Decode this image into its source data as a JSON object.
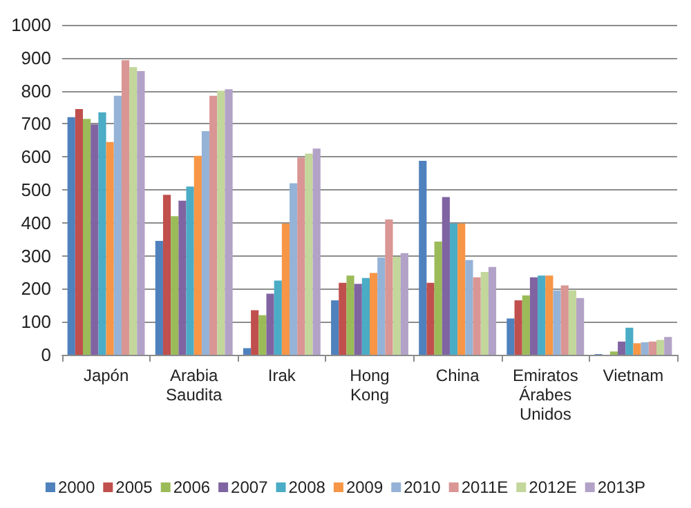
{
  "chart_data": {
    "type": "bar",
    "categories": [
      "Japón",
      "Arabia\nSaudita",
      "Irak",
      "Hong\nKong",
      "China",
      "Emiratos\nÁrabes\nUnidos",
      "Vietnam"
    ],
    "series": [
      {
        "name": "2000",
        "color": "#4f81bd",
        "values": [
          720,
          345,
          20,
          165,
          588,
          110,
          2
        ]
      },
      {
        "name": "2005",
        "color": "#c0504d",
        "values": [
          745,
          485,
          135,
          218,
          218,
          165,
          0
        ]
      },
      {
        "name": "2006",
        "color": "#9bbb59",
        "values": [
          715,
          420,
          120,
          240,
          343,
          180,
          10
        ]
      },
      {
        "name": "2007",
        "color": "#8064a2",
        "values": [
          698,
          467,
          185,
          215,
          478,
          235,
          40
        ]
      },
      {
        "name": "2008",
        "color": "#4bacc6",
        "values": [
          735,
          510,
          225,
          233,
          398,
          240,
          82
        ]
      },
      {
        "name": "2009",
        "color": "#f79646",
        "values": [
          645,
          603,
          398,
          248,
          398,
          240,
          35
        ]
      },
      {
        "name": "2010",
        "color": "#95b3d7",
        "values": [
          785,
          678,
          520,
          295,
          287,
          195,
          38
        ]
      },
      {
        "name": "2011E",
        "color": "#d99694",
        "values": [
          893,
          785,
          598,
          410,
          235,
          210,
          40
        ]
      },
      {
        "name": "2012E",
        "color": "#c3d69b",
        "values": [
          872,
          800,
          610,
          297,
          251,
          195,
          45
        ]
      },
      {
        "name": "2013P",
        "color": "#b3a2c7",
        "values": [
          860,
          805,
          625,
          308,
          266,
          172,
          54
        ]
      }
    ],
    "ylim": [
      0,
      1000
    ],
    "yticks": [
      0,
      100,
      200,
      300,
      400,
      500,
      600,
      700,
      800,
      900,
      1000
    ],
    "grid": "y",
    "legend": "bottom"
  }
}
